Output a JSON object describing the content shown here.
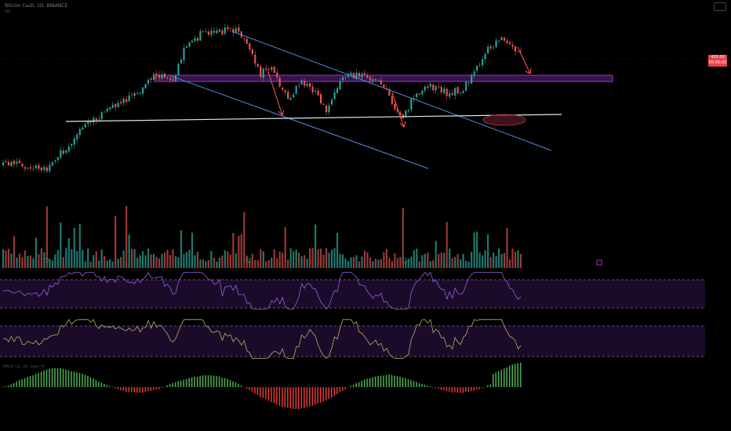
{
  "header": {
    "title": "Bitcoin Cash, 1D, BINANCE",
    "subtitle": "Vol"
  },
  "last_price": {
    "value": "430.00",
    "countdown": "05:56:02"
  },
  "macd_label": "MACD (12, 26, close, 9)",
  "colors": {
    "up": "#26a69a",
    "down": "#ef5350",
    "channel": "#4d8fdc",
    "support": "#e6e6e6",
    "resistance_zone": "#7b2fa6",
    "arrow": "#ff5a4d",
    "rsi_line": "#9b5de5",
    "stoch_line": "#b5b05a",
    "band_fill": "#1b0b2b",
    "macd_up": "#4caf50",
    "macd_down": "#e53935"
  },
  "chart_data": {
    "type": "candlestick",
    "seed": 73,
    "bars": 190,
    "price_range": [
      205,
      515
    ],
    "waypoints": [
      [
        0,
        262
      ],
      [
        12,
        260
      ],
      [
        16,
        248
      ],
      [
        20,
        275
      ],
      [
        30,
        330
      ],
      [
        40,
        365
      ],
      [
        50,
        395
      ],
      [
        56,
        425
      ],
      [
        62,
        405
      ],
      [
        66,
        470
      ],
      [
        72,
        495
      ],
      [
        84,
        505
      ],
      [
        88,
        490
      ],
      [
        94,
        425
      ],
      [
        98,
        435
      ],
      [
        104,
        378
      ],
      [
        108,
        410
      ],
      [
        114,
        392
      ],
      [
        118,
        360
      ],
      [
        124,
        420
      ],
      [
        130,
        425
      ],
      [
        138,
        410
      ],
      [
        142,
        370
      ],
      [
        146,
        345
      ],
      [
        150,
        385
      ],
      [
        156,
        400
      ],
      [
        162,
        390
      ],
      [
        168,
        398
      ],
      [
        172,
        432
      ],
      [
        178,
        475
      ],
      [
        182,
        490
      ],
      [
        184,
        480
      ],
      [
        186,
        470
      ]
    ],
    "indicators": {
      "rsi": {
        "line_hint": "oscillator"
      },
      "stochastic": {
        "line_hint": "oscillator"
      },
      "macd": {
        "line_hint": "histogram"
      }
    }
  }
}
